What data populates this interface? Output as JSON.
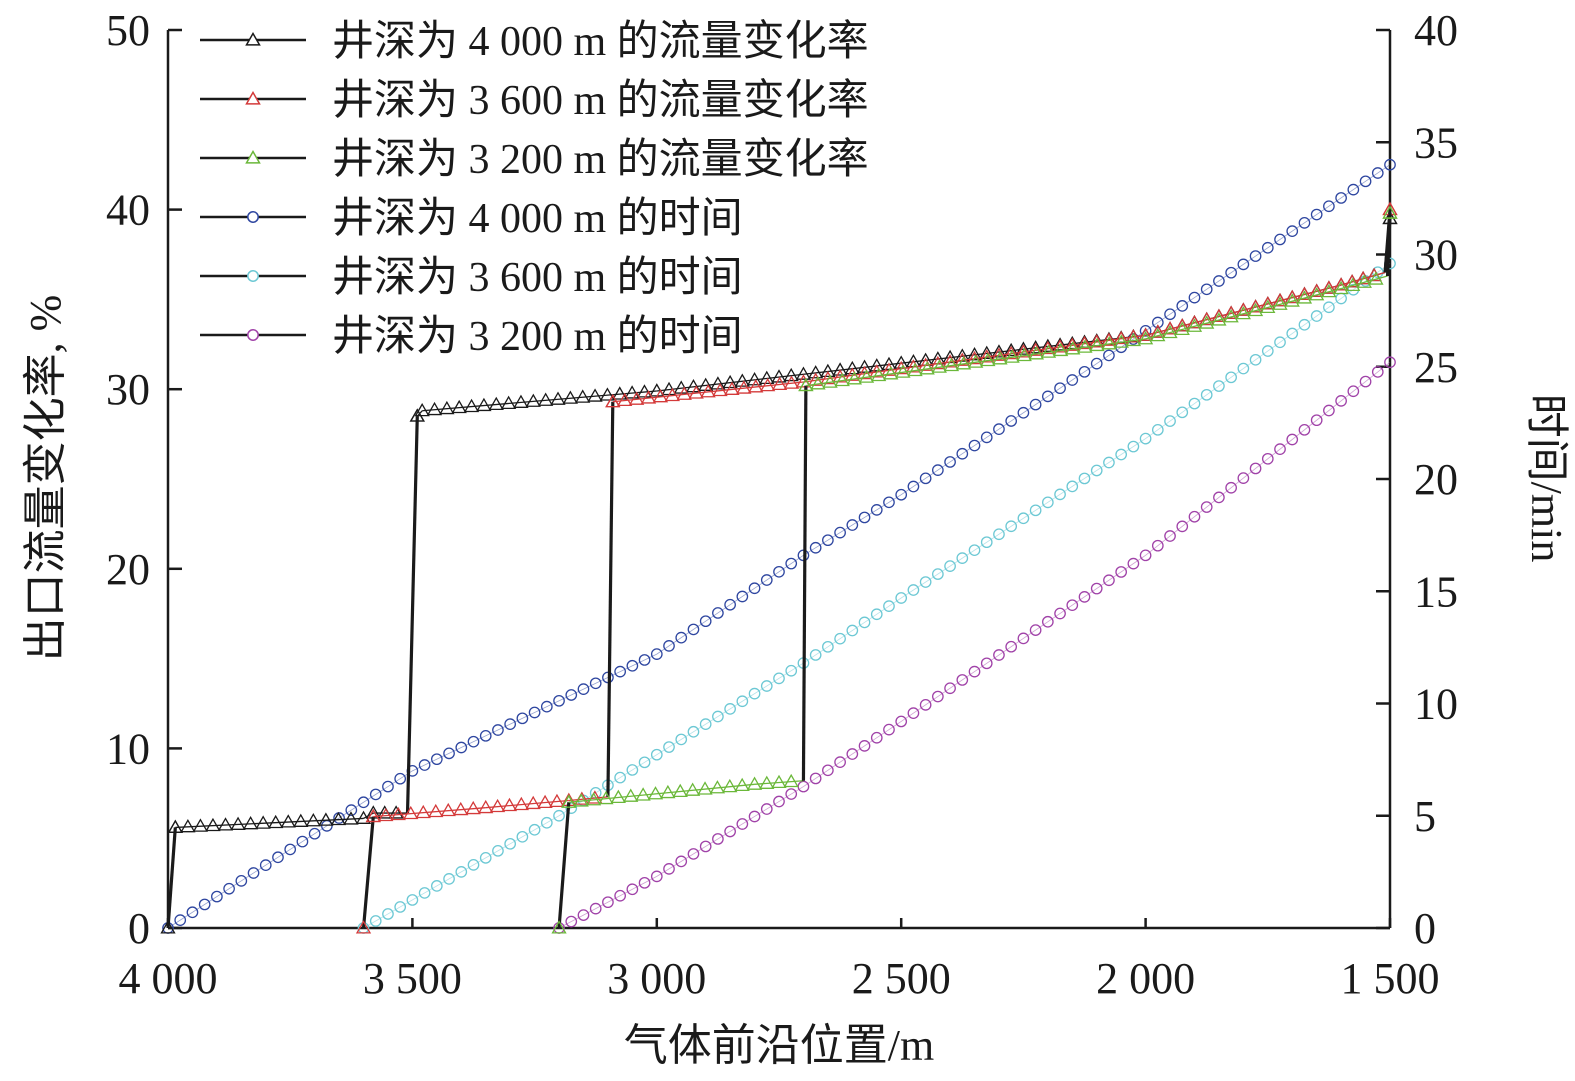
{
  "chart_data": {
    "type": "line",
    "xlabel": "气体前沿位置/m",
    "ylabel_left": "出口流量变化率, %",
    "ylabel_right": "时间/min",
    "x_range": [
      4000,
      1500
    ],
    "x_ticks": [
      4000,
      3500,
      3000,
      2500,
      2000,
      1500
    ],
    "x_tick_labels": [
      "4 000",
      "3 500",
      "3 000",
      "2 500",
      "2 000",
      "1 500"
    ],
    "y_left_range": [
      0,
      50
    ],
    "y_left_ticks": [
      0,
      10,
      20,
      30,
      40,
      50
    ],
    "y_left_tick_labels": [
      "0",
      "10",
      "20",
      "30",
      "40",
      "50"
    ],
    "y_right_range": [
      0,
      40
    ],
    "y_right_ticks": [
      0,
      5,
      10,
      15,
      20,
      25,
      30,
      35,
      40
    ],
    "y_right_tick_labels": [
      "0",
      "5",
      "10",
      "15",
      "20",
      "25",
      "30",
      "35",
      "40"
    ],
    "legend_position": "top-left",
    "series": [
      {
        "name": "井深为 4 000 m 的流量变化率",
        "axis": "left",
        "marker": "triangle",
        "color": "#1a1a1a",
        "points": [
          [
            4000,
            0
          ],
          [
            3985,
            5.6
          ],
          [
            3600,
            6.1
          ],
          [
            3580,
            6.4
          ],
          [
            3510,
            6.4
          ],
          [
            3490,
            28.5
          ],
          [
            3480,
            28.8
          ],
          [
            3000,
            29.9
          ],
          [
            2000,
            33.0
          ],
          [
            1600,
            35.8
          ],
          [
            1510,
            36.5
          ],
          [
            1500,
            39.5
          ]
        ]
      },
      {
        "name": "井深为 3 600 m 的流量变化率",
        "axis": "left",
        "marker": "triangle",
        "color": "#d43a3a",
        "points": [
          [
            3600,
            0
          ],
          [
            3580,
            6.2
          ],
          [
            3350,
            6.7
          ],
          [
            3180,
            7.1
          ],
          [
            3100,
            7.3
          ],
          [
            3090,
            29.3
          ],
          [
            2700,
            30.4
          ],
          [
            2000,
            33.0
          ],
          [
            1600,
            35.8
          ],
          [
            1510,
            36.5
          ],
          [
            1500,
            40.0
          ]
        ]
      },
      {
        "name": "井深为 3 200 m 的流量变化率",
        "axis": "left",
        "marker": "triangle",
        "color": "#6bb83a",
        "points": [
          [
            3200,
            0
          ],
          [
            3180,
            7.0
          ],
          [
            2800,
            8.0
          ],
          [
            2700,
            8.2
          ],
          [
            2695,
            30.2
          ],
          [
            2000,
            32.8
          ],
          [
            1600,
            35.6
          ],
          [
            1505,
            36.3
          ],
          [
            1500,
            39.8
          ]
        ]
      },
      {
        "name": "井深为 4 000 m 的时间",
        "axis": "right",
        "marker": "circle",
        "color": "#2e46a0",
        "points": [
          [
            4000,
            0
          ],
          [
            3500,
            7.0
          ],
          [
            3000,
            12.2
          ],
          [
            2700,
            16.6
          ],
          [
            2500,
            19.3
          ],
          [
            2000,
            26.6
          ],
          [
            1500,
            34.0
          ]
        ]
      },
      {
        "name": "井深为 3 600 m 的时间",
        "axis": "right",
        "marker": "circle",
        "color": "#6cc8d4",
        "points": [
          [
            3600,
            0
          ],
          [
            3200,
            5.0
          ],
          [
            2700,
            11.8
          ],
          [
            2500,
            14.7
          ],
          [
            2000,
            21.8
          ],
          [
            1500,
            29.6
          ]
        ]
      },
      {
        "name": "井深为 3 200 m 的时间",
        "axis": "right",
        "marker": "circle",
        "color": "#a042a8",
        "points": [
          [
            3200,
            0
          ],
          [
            3000,
            2.3
          ],
          [
            2700,
            6.3
          ],
          [
            2500,
            9.2
          ],
          [
            2000,
            16.6
          ],
          [
            1500,
            25.2
          ]
        ]
      }
    ]
  }
}
